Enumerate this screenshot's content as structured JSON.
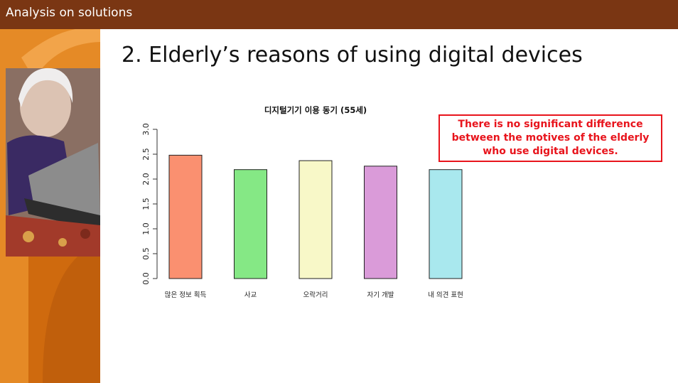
{
  "header": {
    "title": "Analysis on solutions"
  },
  "slide": {
    "title": "2. Elderly’s reasons of using digital devices"
  },
  "callout": {
    "lines": [
      "There is no significant difference",
      "between the motives of the elderly",
      "who use digital devices."
    ]
  },
  "colors": {
    "header_bg": "#7a3613",
    "accent_orange": "#d9720f",
    "callout_red": "#e8141c"
  },
  "chart_data": {
    "type": "bar",
    "title": "디지털기기 이용 동기 (55세)",
    "xlabel": "",
    "ylabel": "",
    "categories": [
      "많은 정보 획득",
      "사교",
      "오락거리",
      "자기 개발",
      "내 의견 표현"
    ],
    "values": [
      2.48,
      2.19,
      2.37,
      2.26,
      2.19
    ],
    "colors": [
      "#fa9070",
      "#85e885",
      "#f8f8c8",
      "#da9bd9",
      "#a9e8ee"
    ],
    "ylim": [
      0,
      3.0
    ],
    "yticks": [
      "0.0",
      "0.5",
      "1.0",
      "1.5",
      "2.0",
      "2.5",
      "3.0"
    ],
    "grid": false,
    "legend": "none"
  }
}
